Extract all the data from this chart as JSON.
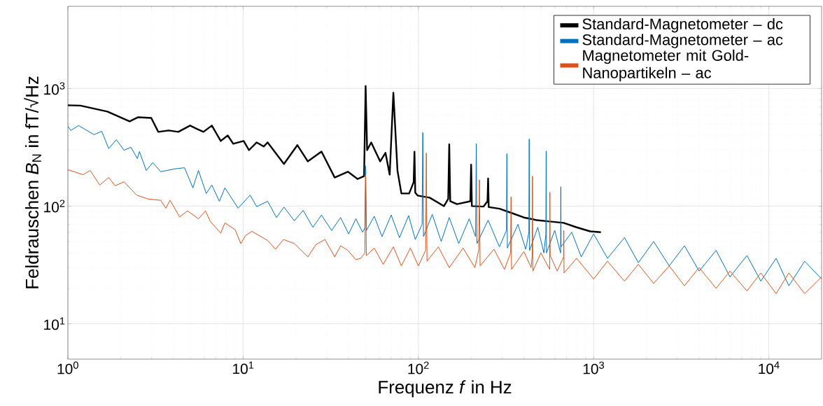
{
  "chart_data": {
    "type": "line",
    "xlabel": "Frequenz *f* in Hz",
    "ylabel": "Feldrauschen *B*$_{N}$ in fT/√Hz",
    "log": "xy",
    "grid": true,
    "legend": "top right",
    "line_style": "solid",
    "xlim": [
      1,
      20000
    ],
    "ylim": [
      5,
      5000
    ],
    "xticks": [
      {
        "value": 1,
        "label": "10$^{0}$"
      },
      {
        "value": 10,
        "label": "10$^{1}$"
      },
      {
        "value": 100,
        "label": "10$^{2}$"
      },
      {
        "value": 1000,
        "label": "10$^{3}$"
      },
      {
        "value": 10000,
        "label": "10$^{4}$"
      }
    ],
    "yticks": [
      {
        "value": 10,
        "label": "10$^{1}$"
      },
      {
        "value": 100,
        "label": "10$^{2}$"
      },
      {
        "value": 1000,
        "label": "10$^{3}$"
      }
    ],
    "series": [
      {
        "name": "Standard-Magnetometer – dc",
        "color": "#000000",
        "x": [
          1,
          1.18,
          1.68,
          2.25,
          2.52,
          2.99,
          3.28,
          3.76,
          4.27,
          4.98,
          5.47,
          5.94,
          6.63,
          7.45,
          8.17,
          8.78,
          10.07,
          10.8,
          11.95,
          13.1,
          13.8,
          17.1,
          20.4,
          23.4,
          28,
          33.3,
          39.6,
          45,
          49,
          50,
          51,
          53.8,
          60.5,
          64.9,
          68.6,
          72,
          76,
          80,
          88.6,
          94,
          95,
          96,
          99,
          116,
          140,
          148,
          150,
          152,
          166,
          198,
          200,
          202,
          235,
          248,
          250,
          252,
          290,
          336,
          400,
          474,
          560,
          674,
          800,
          955,
          1100
        ],
        "values": [
          720,
          715,
          637,
          525,
          570,
          562,
          428,
          440,
          428,
          484,
          452,
          428,
          484,
          358,
          399,
          339,
          358,
          299,
          348,
          321,
          348,
          228,
          330,
          240,
          291,
          175,
          196,
          170,
          180,
          1050,
          299,
          348,
          240,
          284,
          185,
          920,
          200,
          128,
          128,
          160,
          290,
          130,
          123,
          118,
          100,
          115,
          335,
          110,
          104,
          110,
          225,
          100,
          99,
          110,
          172,
          98,
          95,
          88,
          80,
          76,
          74,
          72,
          66,
          61,
          60
        ]
      },
      {
        "name": "Standard-Magnetometer – ac",
        "color": "#0072bd",
        "x": [
          1,
          1.04,
          1.15,
          1.41,
          1.56,
          1.71,
          1.89,
          2.09,
          2.29,
          2.49,
          2.56,
          2.8,
          3.05,
          3.39,
          4.05,
          4.63,
          5.17,
          5.56,
          6.16,
          6.63,
          7.32,
          7.87,
          9.36,
          10.97,
          11.95,
          13.8,
          15.5,
          17.1,
          19.6,
          22,
          25,
          28,
          32,
          36,
          40,
          44,
          48,
          49.5,
          50,
          50.5,
          56,
          62,
          70,
          78,
          88,
          96,
          105,
          106,
          107,
          120,
          135,
          150,
          170,
          195,
          212,
          214,
          216,
          250,
          290,
          318,
          320,
          322,
          370,
          410,
          427,
          429,
          431,
          480,
          520,
          534,
          536,
          538,
          600,
          648,
          650,
          652,
          750,
          850,
          1000,
          1200,
          1500,
          1800,
          2200,
          2700,
          3300,
          4000,
          5000,
          6000,
          7500,
          9000,
          11000,
          13000,
          16000,
          20000
        ],
        "values": [
          477,
          440,
          484,
          405,
          433,
          308,
          367,
          299,
          316,
          254,
          291,
          201,
          234,
          196,
          207,
          212,
          143,
          201,
          128,
          151,
          110,
          143,
          96,
          124,
          99,
          110,
          80,
          98,
          75,
          92,
          66,
          84,
          62,
          80,
          58,
          78,
          60,
          65,
          220,
          62,
          82,
          55,
          84,
          54,
          83,
          52,
          70,
          422,
          55,
          85,
          50,
          80,
          48,
          78,
          55,
          340,
          48,
          76,
          45,
          62,
          279,
          44,
          70,
          43,
          60,
          372,
          42,
          66,
          40,
          58,
          294,
          40,
          62,
          40,
          146,
          45,
          60,
          37,
          58,
          36,
          54,
          33,
          50,
          31,
          46,
          28,
          42,
          25,
          38,
          23,
          36,
          21,
          34,
          24
        ]
      },
      {
        "name": "Magnetometer mit Gold-Nanopartikeln – ac",
        "color": "#d95319",
        "x": [
          1,
          1.22,
          1.34,
          1.52,
          1.71,
          1.86,
          2.09,
          2.47,
          2.86,
          3.39,
          3.62,
          3.83,
          4.34,
          4.82,
          5.56,
          6.1,
          6.5,
          7.45,
          7.87,
          9,
          9.7,
          10.3,
          11.2,
          13.8,
          15.3,
          17,
          19.6,
          23.4,
          26,
          29.3,
          33.3,
          36,
          39.6,
          44,
          47,
          49.5,
          50,
          50.5,
          56,
          63,
          72,
          80,
          90,
          100,
          110,
          111,
          112,
          130,
          150,
          180,
          210,
          221,
          223,
          225,
          270,
          310,
          336,
          338,
          340,
          400,
          440,
          446,
          448,
          450,
          500,
          561,
          563,
          565,
          620,
          674,
          676,
          678,
          800,
          1000,
          1200,
          1500,
          1800,
          2200,
          2700,
          3300,
          4000,
          5000,
          6000,
          7500,
          9000,
          11000,
          13000,
          16000,
          20000
        ],
        "values": [
          204,
          185,
          201,
          151,
          175,
          149,
          161,
          124,
          115,
          112,
          96,
          112,
          81,
          91,
          78,
          91,
          74,
          59,
          72,
          63,
          48,
          56,
          61,
          51,
          43,
          52,
          48,
          37,
          47,
          52,
          37,
          46,
          42,
          35,
          36,
          40,
          180,
          38,
          44,
          32,
          45,
          31,
          44,
          31,
          42,
          283,
          34,
          45,
          30,
          44,
          30,
          42,
          167,
          31,
          43,
          29,
          40,
          120,
          29,
          41,
          30,
          38,
          180,
          28,
          40,
          29,
          131,
          38,
          28,
          37,
          62,
          27,
          36,
          24,
          34,
          23,
          32,
          22,
          31,
          21,
          30,
          20,
          28,
          19,
          27,
          18,
          27,
          18,
          25
        ]
      }
    ]
  }
}
